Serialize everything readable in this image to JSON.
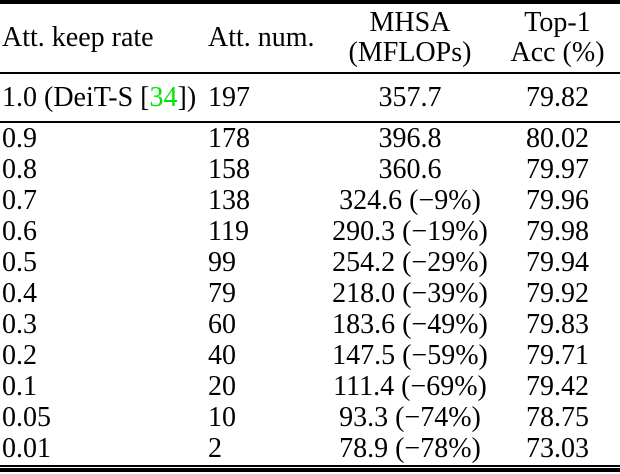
{
  "accent_colors": {
    "cite_green": "#00e400"
  },
  "table": {
    "headers": {
      "col1": "Att. keep rate",
      "col2": "Att. num.",
      "col3_line1": "MHSA",
      "col3_line2": "(MFLOPs)",
      "col4_line1": "Top-1",
      "col4_line2": "Acc (%)"
    },
    "baseline_row": {
      "rate_prefix": "1.0 (DeiT-S [",
      "rate_cite": "34",
      "rate_suffix": "])",
      "att_num": "197",
      "mflops": "357.7",
      "acc": "79.82"
    },
    "rows": [
      {
        "rate": "0.9",
        "att_num": "178",
        "mflops": "396.8",
        "acc": "80.02"
      },
      {
        "rate": "0.8",
        "att_num": "158",
        "mflops": "360.6",
        "acc": "79.97"
      },
      {
        "rate": "0.7",
        "att_num": "138",
        "mflops": "324.6 (−9%)",
        "acc": "79.96"
      },
      {
        "rate": "0.6",
        "att_num": "119",
        "mflops": "290.3 (−19%)",
        "acc": "79.98"
      },
      {
        "rate": "0.5",
        "att_num": "99",
        "mflops": "254.2 (−29%)",
        "acc": "79.94"
      },
      {
        "rate": "0.4",
        "att_num": "79",
        "mflops": "218.0 (−39%)",
        "acc": "79.92"
      },
      {
        "rate": "0.3",
        "att_num": "60",
        "mflops": "183.6 (−49%)",
        "acc": "79.83"
      },
      {
        "rate": "0.2",
        "att_num": "40",
        "mflops": "147.5 (−59%)",
        "acc": "79.71"
      },
      {
        "rate": "0.1",
        "att_num": "20",
        "mflops": "111.4 (−69%)",
        "acc": "79.42"
      },
      {
        "rate": "0.05",
        "att_num": "10",
        "mflops": "93.3 (−74%)",
        "acc": "78.75"
      },
      {
        "rate": "0.01",
        "att_num": "2",
        "mflops": "78.9 (−78%)",
        "acc": "73.03"
      }
    ]
  }
}
